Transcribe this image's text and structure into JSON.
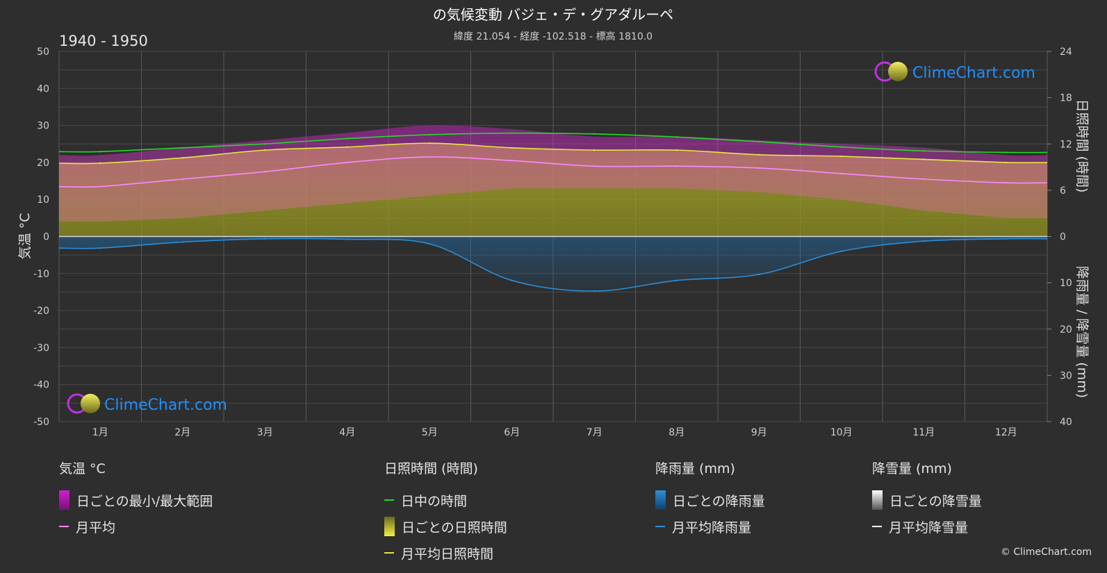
{
  "header": {
    "title": "の気候変動 バジェ・デ・グアダルーペ",
    "subtitle": "緯度 21.054 - 経度 -102.518 - 標高 1810.0",
    "period": "1940 - 1950"
  },
  "watermark": "ClimeChart.com",
  "copyright": "© ClimeChart.com",
  "colors": {
    "background": "#2e2e2e",
    "temp_range": "#e020e0",
    "temp_avg": "#ff88ff",
    "daylight": "#22dd22",
    "sunshine_fill": "#aaaa22",
    "sunshine_avg": "#e8e840",
    "rain": "#2a8fd8",
    "snow": "#ffffff",
    "brand": "#1e90ff"
  },
  "chart_data": {
    "type": "line",
    "x_label": "",
    "categories": [
      "1月",
      "2月",
      "3月",
      "4月",
      "5月",
      "6月",
      "7月",
      "8月",
      "9月",
      "10月",
      "11月",
      "12月"
    ],
    "y_left": {
      "label": "気温 °C",
      "range": [
        -50,
        50
      ],
      "ticks": [
        50,
        40,
        30,
        20,
        10,
        0,
        -10,
        -20,
        -30,
        -40,
        -50
      ]
    },
    "y_right_top": {
      "label": "日照時間 (時間)",
      "range": [
        0,
        24
      ],
      "ticks": [
        24,
        18,
        12,
        6,
        0
      ]
    },
    "y_right_bottom": {
      "label": "降雨量 / 降雪量 (mm)",
      "range": [
        0,
        40
      ],
      "ticks": [
        0,
        10,
        20,
        30,
        40
      ]
    },
    "grid": true,
    "series": [
      {
        "name": "日中の時間",
        "unit": "時間",
        "values": [
          11.0,
          11.5,
          12.0,
          12.7,
          13.2,
          13.4,
          13.3,
          12.9,
          12.3,
          11.6,
          11.1,
          10.9
        ]
      },
      {
        "name": "月平均日照時間",
        "unit": "時間",
        "values": [
          9.5,
          10.2,
          11.2,
          11.6,
          12.1,
          11.5,
          11.2,
          11.2,
          10.6,
          10.4,
          10.0,
          9.6
        ]
      },
      {
        "name": "月平均",
        "unit": "°C",
        "values": [
          13.5,
          15.5,
          17.5,
          20.0,
          21.5,
          20.5,
          19.0,
          19.0,
          18.5,
          17.0,
          15.5,
          14.5
        ]
      },
      {
        "name": "月平均降雨量",
        "unit": "mm",
        "values": [
          2.5,
          1.2,
          0.5,
          0.6,
          1.6,
          9.5,
          11.8,
          9.5,
          8.2,
          3.2,
          1.0,
          0.5
        ]
      },
      {
        "name": "月平均降雪量",
        "unit": "mm",
        "values": [
          0,
          0,
          0,
          0,
          0,
          0,
          0,
          0,
          0,
          0,
          0,
          0
        ]
      }
    ],
    "daily_range_band": {
      "name": "日ごとの最小/最大範囲",
      "unit": "°C",
      "min": [
        4,
        5,
        7,
        9,
        11,
        13,
        13,
        13,
        12,
        10,
        7,
        5
      ],
      "max": [
        22,
        24,
        26,
        28,
        30,
        29,
        27,
        27,
        26,
        25,
        24,
        22
      ]
    }
  },
  "legend": {
    "temp": {
      "title": "気温 °C",
      "items": [
        "日ごとの最小/最大範囲",
        "月平均"
      ]
    },
    "sun": {
      "title": "日照時間 (時間)",
      "items": [
        "日中の時間",
        "日ごとの日照時間",
        "月平均日照時間"
      ]
    },
    "rain": {
      "title": "降雨量 (mm)",
      "items": [
        "日ごとの降雨量",
        "月平均降雨量"
      ]
    },
    "snow": {
      "title": "降雪量 (mm)",
      "items": [
        "日ごとの降雪量",
        "月平均降雪量"
      ]
    }
  }
}
